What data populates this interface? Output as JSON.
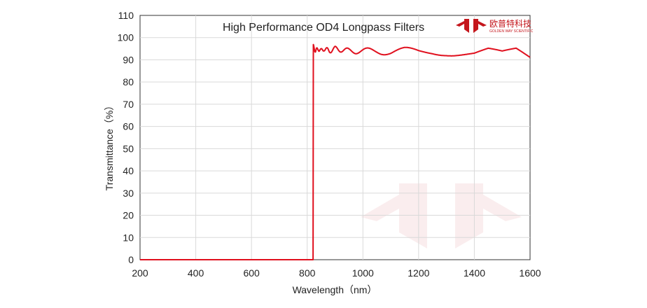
{
  "chart_data": {
    "type": "line",
    "title": "High Performance OD4 Longpass  Filters",
    "xlabel": "Wavelength（nm）",
    "ylabel": "Transmittance（%）",
    "xlim": [
      200,
      1600
    ],
    "ylim": [
      0,
      110
    ],
    "x_ticks": [
      200,
      400,
      600,
      800,
      1000,
      1200,
      1400,
      1600
    ],
    "y_ticks": [
      0,
      10,
      20,
      30,
      40,
      50,
      60,
      70,
      80,
      90,
      100,
      110
    ],
    "grid": true,
    "series": [
      {
        "color": "#e0101e",
        "x": [
          200,
          400,
          600,
          800,
          818,
          821,
          822,
          830,
          840,
          850,
          860,
          880,
          900,
          950,
          1000,
          1050,
          1100,
          1150,
          1200,
          1250,
          1300,
          1350,
          1400,
          1450,
          1500,
          1550,
          1600
        ],
        "y": [
          0,
          0,
          0,
          0,
          0,
          0,
          96,
          94,
          95,
          94,
          95,
          94,
          95,
          94,
          94,
          94,
          93.5,
          94,
          93.5,
          94,
          94,
          93.5,
          93,
          94,
          92,
          93,
          89
        ]
      }
    ]
  },
  "logo": {
    "name_cn": "欧普特科技",
    "name_en": "GOLDEN WAY SCIENTIFIC",
    "color": "#c4161c"
  },
  "watermark_color": "#c4161c"
}
